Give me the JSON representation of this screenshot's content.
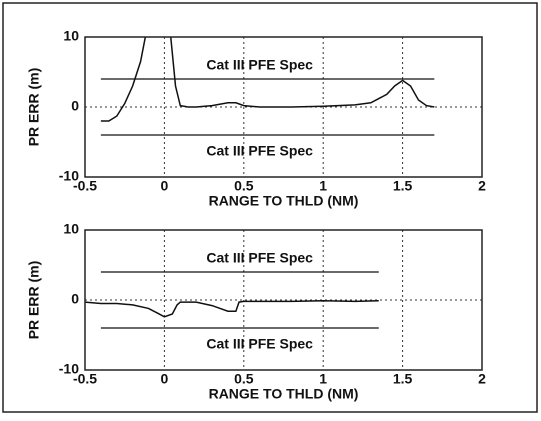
{
  "chart_data": [
    {
      "type": "line",
      "xlabel": "RANGE TO THLD (NM)",
      "ylabel": "PR ERR (m)",
      "xlim": [
        -0.5,
        2
      ],
      "ylim": [
        -10,
        10
      ],
      "xticks": [
        -0.5,
        0,
        0.5,
        1,
        1.5,
        2
      ],
      "yticks": [
        -10,
        0,
        10
      ],
      "grid": true,
      "series": [
        {
          "color": "#111111",
          "x": [
            -0.4,
            -0.35,
            -0.3,
            -0.25,
            -0.2,
            -0.15,
            -0.12,
            -0.08,
            -0.03,
            0.02,
            0.04,
            0.07,
            0.1,
            0.15,
            0.2,
            0.3,
            0.4,
            0.45,
            0.5,
            0.6,
            0.8,
            1,
            1.2,
            1.3,
            1.4,
            1.45,
            1.5,
            1.55,
            1.6,
            1.65,
            1.7
          ],
          "values": [
            -2,
            -2,
            -1.3,
            0.5,
            3,
            6.5,
            10,
            13,
            14,
            13,
            10,
            3,
            0.2,
            0,
            0,
            0.2,
            0.6,
            0.6,
            0.2,
            0,
            0,
            0.1,
            0.3,
            0.6,
            1.8,
            3,
            3.8,
            3,
            1,
            0.2,
            0
          ]
        }
      ],
      "spec_lines": [
        {
          "label": "Cat III PFE Spec",
          "y": 4,
          "x": [
            -0.4,
            1.7
          ]
        },
        {
          "label": "Cat III PFE Spec",
          "y": -4,
          "x": [
            -0.4,
            1.7
          ]
        }
      ]
    },
    {
      "type": "line",
      "xlabel": "RANGE TO THLD (NM)",
      "ylabel": "PR ERR (m)",
      "xlim": [
        -0.5,
        2
      ],
      "ylim": [
        -10,
        10
      ],
      "xticks": [
        -0.5,
        0,
        0.5,
        1,
        1.5,
        2
      ],
      "yticks": [
        -10,
        0,
        10
      ],
      "grid": true,
      "series": [
        {
          "color": "#111111",
          "x": [
            -0.5,
            -0.4,
            -0.3,
            -0.2,
            -0.1,
            -0.05,
            0,
            0.05,
            0.08,
            0.1,
            0.2,
            0.3,
            0.4,
            0.45,
            0.47,
            0.5,
            0.8,
            1,
            1.2,
            1.35
          ],
          "values": [
            -0.3,
            -0.5,
            -0.5,
            -0.7,
            -1.2,
            -1.8,
            -2.4,
            -2,
            -0.7,
            -0.3,
            -0.3,
            -0.8,
            -1.6,
            -1.6,
            -0.3,
            -0.2,
            -0.2,
            -0.1,
            -0.2,
            -0.1
          ]
        }
      ],
      "spec_lines": [
        {
          "label": "Cat III PFE Spec",
          "y": 4,
          "x": [
            -0.4,
            1.35
          ]
        },
        {
          "label": "Cat III PFE Spec",
          "y": -4,
          "x": [
            -0.4,
            1.35
          ]
        }
      ]
    }
  ]
}
